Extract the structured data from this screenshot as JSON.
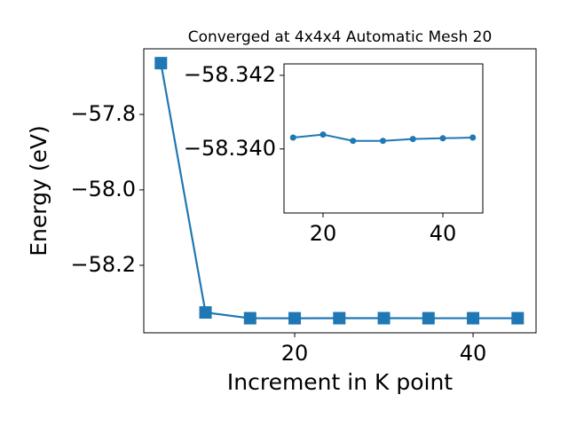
{
  "chart_data": [
    {
      "type": "line",
      "title": "Converged at 4x4x4 Automatic Mesh 20",
      "x_label": "Increment in K point",
      "y_label": "Energy (eV)",
      "x": [
        5,
        10,
        15,
        20,
        25,
        30,
        35,
        40,
        45
      ],
      "series": [
        {
          "name": "Energy",
          "color": "#1f77b4",
          "marker": "square",
          "values": [
            -57.664,
            -58.325,
            -58.3403,
            -58.3404,
            -58.3402,
            -58.3402,
            -58.3403,
            -58.3403,
            -58.3403
          ]
        }
      ],
      "xlim": [
        3.08,
        47.06
      ],
      "ylim": [
        -58.379,
        -57.626
      ],
      "xticks": [
        20,
        40
      ],
      "yticks": [
        {
          "value": -58.2,
          "label": "−58.2"
        },
        {
          "value": -58.0,
          "label": "−58.0"
        },
        {
          "value": -57.8,
          "label": "−57.8"
        }
      ]
    },
    {
      "type": "line",
      "x": [
        15,
        20,
        25,
        30,
        35,
        40,
        45
      ],
      "series": [
        {
          "name": "Energy",
          "color": "#1f77b4",
          "marker": "circle",
          "values": [
            -58.34031,
            -58.34039,
            -58.34022,
            -58.34022,
            -58.34027,
            -58.34029,
            -58.34031
          ]
        }
      ],
      "xlim": [
        13.48,
        46.67
      ],
      "ylim": [
        -58.33826,
        -58.34231
      ],
      "xticks": [
        20,
        40
      ],
      "yticks": [
        {
          "value": -58.342,
          "label": "−58.342"
        },
        {
          "value": -58.34,
          "label": "−58.340"
        }
      ]
    }
  ]
}
